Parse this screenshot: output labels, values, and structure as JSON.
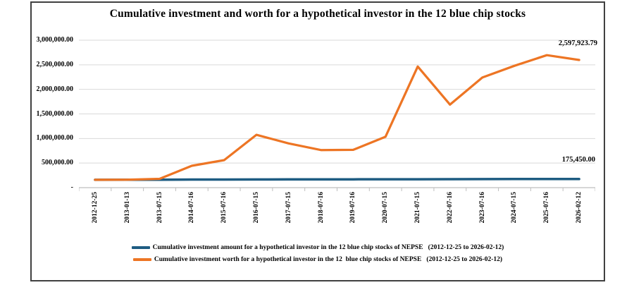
{
  "chart_data": {
    "type": "line",
    "title": "Cumulative investment and worth for a hypothetical investor in the 12 blue chip stocks",
    "categories": [
      "2012-12-25",
      "2013-01-13",
      "2013-07-15",
      "2014-07-16",
      "2015-07-16",
      "2016-07-15",
      "2017-07-15",
      "2018-07-16",
      "2019-07-16",
      "2020-07-15",
      "2021-07-15",
      "2022-07-16",
      "2023-07-16",
      "2024-07-15",
      "2025-07-16",
      "2026-02-12"
    ],
    "series": [
      {
        "name": "Cumulative investment amount for a hypothetical investor in the 12 blue chip stocks of NEPSE   (2012-12-25 to 2026-02-12)",
        "color": "#1e5c82",
        "stroke_width": 3.5,
        "values": [
          160000,
          160450,
          162450,
          164450,
          165450,
          166450,
          167450,
          168450,
          169450,
          170450,
          171450,
          172450,
          173450,
          174450,
          175450,
          175450
        ]
      },
      {
        "name": "Cumulative investment worth for a hypothetical investor in the 12  blue chip stocks of NEPSE   (2012-12-25 to 2026-02-12)",
        "color": "#ed7524",
        "stroke_width": 3.25,
        "values": [
          160000,
          162000,
          180000,
          445000,
          560000,
          1075000,
          900000,
          765000,
          770000,
          1035000,
          2465000,
          1690000,
          2240000,
          2480000,
          2695000,
          2597923.79
        ]
      }
    ],
    "xlabel": "",
    "ylabel": "",
    "ylim": [
      0,
      3000000
    ],
    "ytick_step": 500000,
    "ytick_labels": [
      "3,000,000.00",
      "2,500,000.00",
      "2,000,000.00",
      "1,500,000.00",
      "1,000,000.00",
      "500,000.00",
      "-"
    ],
    "grid": "horizontal",
    "legend_position": "bottom",
    "annotations": [
      {
        "text": "2,597,923.79",
        "series": "worth",
        "at": "2026-02-12"
      },
      {
        "text": "175,450.00",
        "series": "investment",
        "at": "2026-02-12"
      }
    ]
  },
  "colors": {
    "gridline": "#d9d9d9",
    "axis": "#bfbfbf",
    "frame_border": "#404040",
    "text": "#000000"
  }
}
